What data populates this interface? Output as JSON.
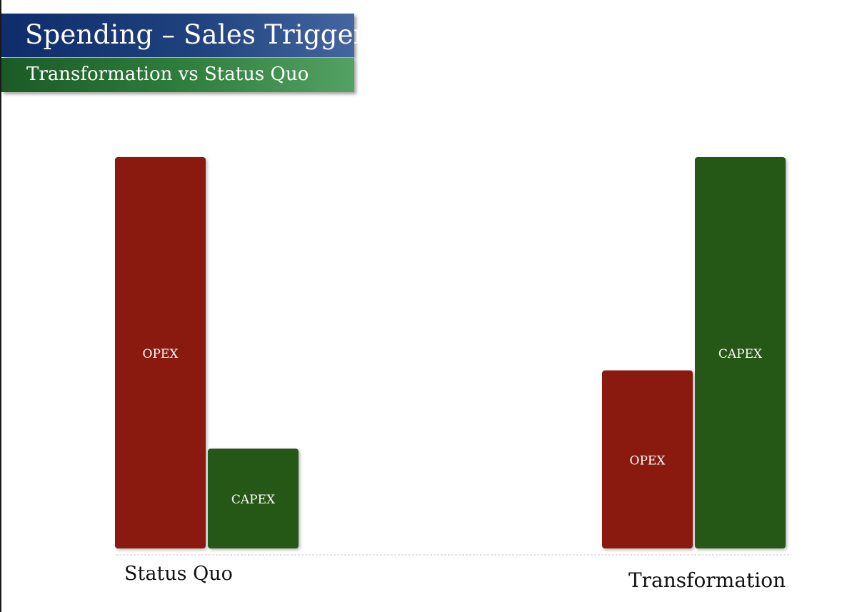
{
  "header": {
    "title": "Spending – Sales Trigger",
    "subtitle": "Transformation vs Status Quo"
  },
  "chart_data": {
    "type": "bar",
    "categories": [
      "Status Quo",
      "Transformation"
    ],
    "series": [
      {
        "name": "OPEX",
        "values": [
          100,
          45.5
        ],
        "color": "#8a1a10"
      },
      {
        "name": "CAPEX",
        "values": [
          25.5,
          100
        ],
        "color": "#255716"
      }
    ],
    "ylim": [
      0,
      100
    ],
    "grid": false,
    "legend": "none",
    "baseline_style": "dashed"
  }
}
